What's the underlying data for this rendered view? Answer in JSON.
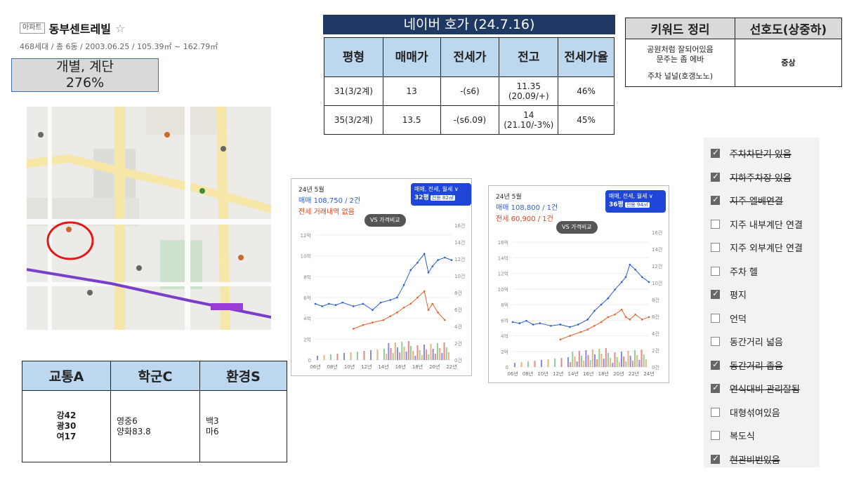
{
  "header": {
    "tag": "아파트",
    "name": "동부센트레빌",
    "star": "☆",
    "meta": "468세대 / 총 6동 / 2003.06.25 / 105.39㎡ ~ 162.79㎡"
  },
  "type_box": {
    "line1": "개별, 계단",
    "line2": "276%"
  },
  "naver": {
    "title": "네이버 호가 (24.7.16)",
    "headers": [
      "평형",
      "매매가",
      "전세가",
      "전고",
      "전세가율"
    ],
    "rows": [
      {
        "size": "31(3/2계)",
        "sale": "13",
        "jeonse": "-(s6)",
        "high1": "11.35",
        "high2": "(20.09/+)",
        "ratio": "46%"
      },
      {
        "size": "35(3/2계)",
        "sale": "13.5",
        "jeonse": "-(s6.09)",
        "high1": "14",
        "high2": "(21.10/-3%)",
        "ratio": "45%"
      }
    ]
  },
  "keywords": {
    "headers": [
      "키워드 정리",
      "선호도(상중하)"
    ],
    "note_lines": [
      "공원처럼 잘되어있음",
      "문주는 좀 에바",
      "",
      "주차 널널(호갱노노)"
    ],
    "preference": "중상"
  },
  "charts": [
    {
      "month": "24년 5월",
      "sale": "매매 108,750 / 2건",
      "jeonse": "전세 거래내역 없음",
      "badge_title": "매매, 전세, 월세 ∨",
      "badge_size": "32평",
      "badge_sub": "전용 82㎡",
      "vs": "VS 가격비교",
      "y_left": [
        "12억",
        "10억",
        "8억",
        "6억",
        "4억",
        "2억",
        "0"
      ],
      "y_right": [
        "16건",
        "14건",
        "12건",
        "10건",
        "8건",
        "6건",
        "4건",
        "2건",
        "0건"
      ],
      "x_labels": [
        "06년",
        "08년",
        "10년",
        "12년",
        "14년",
        "16년",
        "18년",
        "20년",
        "22년"
      ]
    },
    {
      "month": "24년 5월",
      "sale": "매매 108,800 / 1건",
      "jeonse": "전세 60,900 / 1건",
      "badge_title": "매매, 전세, 월세 ∨",
      "badge_size": "36평",
      "badge_sub": "전용 94㎡",
      "vs": "VS 가격비교",
      "y_left": [
        "16억",
        "14억",
        "12억",
        "10억",
        "8억",
        "6억",
        "4억",
        "2억",
        "0"
      ],
      "y_right": [
        "16건",
        "14건",
        "12건",
        "10건",
        "8건",
        "6건",
        "4건",
        "2건",
        "0건"
      ],
      "x_labels": [
        "06년",
        "08년",
        "10년",
        "12년",
        "14년",
        "16년",
        "18년",
        "20년",
        "22년",
        "24년"
      ]
    }
  ],
  "zones": {
    "headers": [
      "교통A",
      "학군C",
      "환경S"
    ],
    "traffic": [
      "강42",
      "광30",
      "여17"
    ],
    "school": [
      "영중6",
      "양화83.8"
    ],
    "env": [
      "백3",
      "마6"
    ]
  },
  "checklist": [
    {
      "label": "주차차단기 있음",
      "checked": true,
      "struck": true
    },
    {
      "label": "지하주차장 있음",
      "checked": true,
      "struck": true
    },
    {
      "label": "지주 엘베연결",
      "checked": true,
      "struck": true
    },
    {
      "label": "지주 내부계단 연결",
      "checked": false,
      "struck": false
    },
    {
      "label": "지주 외부계단 연결",
      "checked": false,
      "struck": false
    },
    {
      "label": "주차 헬",
      "checked": false,
      "struck": false
    },
    {
      "label": "평지",
      "checked": true,
      "struck": false
    },
    {
      "label": "언덕",
      "checked": false,
      "struck": false
    },
    {
      "label": "동간거리 넓음",
      "checked": false,
      "struck": false
    },
    {
      "label": "동간거리 좁음",
      "checked": true,
      "struck": true
    },
    {
      "label": "연식대비 관리잘됨",
      "checked": true,
      "struck": true
    },
    {
      "label": "대형섞여있음",
      "checked": false,
      "struck": false
    },
    {
      "label": "복도식",
      "checked": false,
      "struck": false
    },
    {
      "label": "현관비번있음",
      "checked": true,
      "struck": true
    }
  ],
  "colors": {
    "navy": "#1f3864",
    "header_blue": "#bdd7ee",
    "sale_line": "#2c5cd6",
    "jeonse_line": "#e8602c",
    "map_circle": "#e01818"
  }
}
